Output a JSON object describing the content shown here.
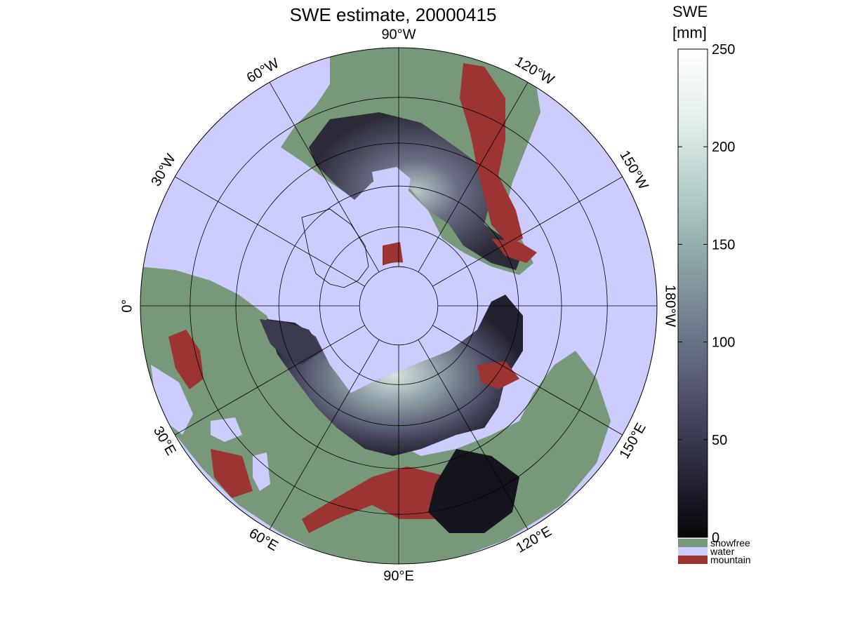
{
  "title": "SWE estimate, 20000415",
  "map": {
    "projection": "north polar stereographic",
    "lat_circles": [
      80,
      70,
      60,
      50,
      40,
      30
    ],
    "meridian_step_deg": 30,
    "lon_labels": [
      {
        "text": "90°W",
        "lon": -90
      },
      {
        "text": "120°W",
        "lon": -120
      },
      {
        "text": "150°W",
        "lon": -150
      },
      {
        "text": "180°W",
        "lon": 180
      },
      {
        "text": "150°E",
        "lon": 150
      },
      {
        "text": "120°E",
        "lon": 120
      },
      {
        "text": "90°E",
        "lon": 90
      },
      {
        "text": "60°E",
        "lon": 60
      },
      {
        "text": "30°E",
        "lon": 30
      },
      {
        "text": "0°",
        "lon": 0
      },
      {
        "text": "30°W",
        "lon": -30
      },
      {
        "text": "60°W",
        "lon": -60
      }
    ]
  },
  "colorbar": {
    "title_line1": "SWE",
    "title_line2": "[mm]",
    "min": 0,
    "max": 250,
    "ticks": [
      0,
      50,
      100,
      150,
      200,
      250
    ],
    "gradient_stops": [
      "#06060a",
      "#2a2a3c",
      "#50506a",
      "#6f7b8c",
      "#8fa6a6",
      "#b7cfcc",
      "#e4efec",
      "#ffffff"
    ]
  },
  "categories": [
    {
      "label": "snowfree",
      "color": "#77997a"
    },
    {
      "label": "water",
      "color": "#ccccff"
    },
    {
      "label": "mountain",
      "color": "#9c3434"
    }
  ],
  "colors": {
    "water": "#ccccff",
    "land": "#77997a",
    "mountain": "#9c3434",
    "snow_dark": "#1a1a26",
    "snow_mid": "#4a4a62",
    "snow_light": "#b4c6c4"
  }
}
